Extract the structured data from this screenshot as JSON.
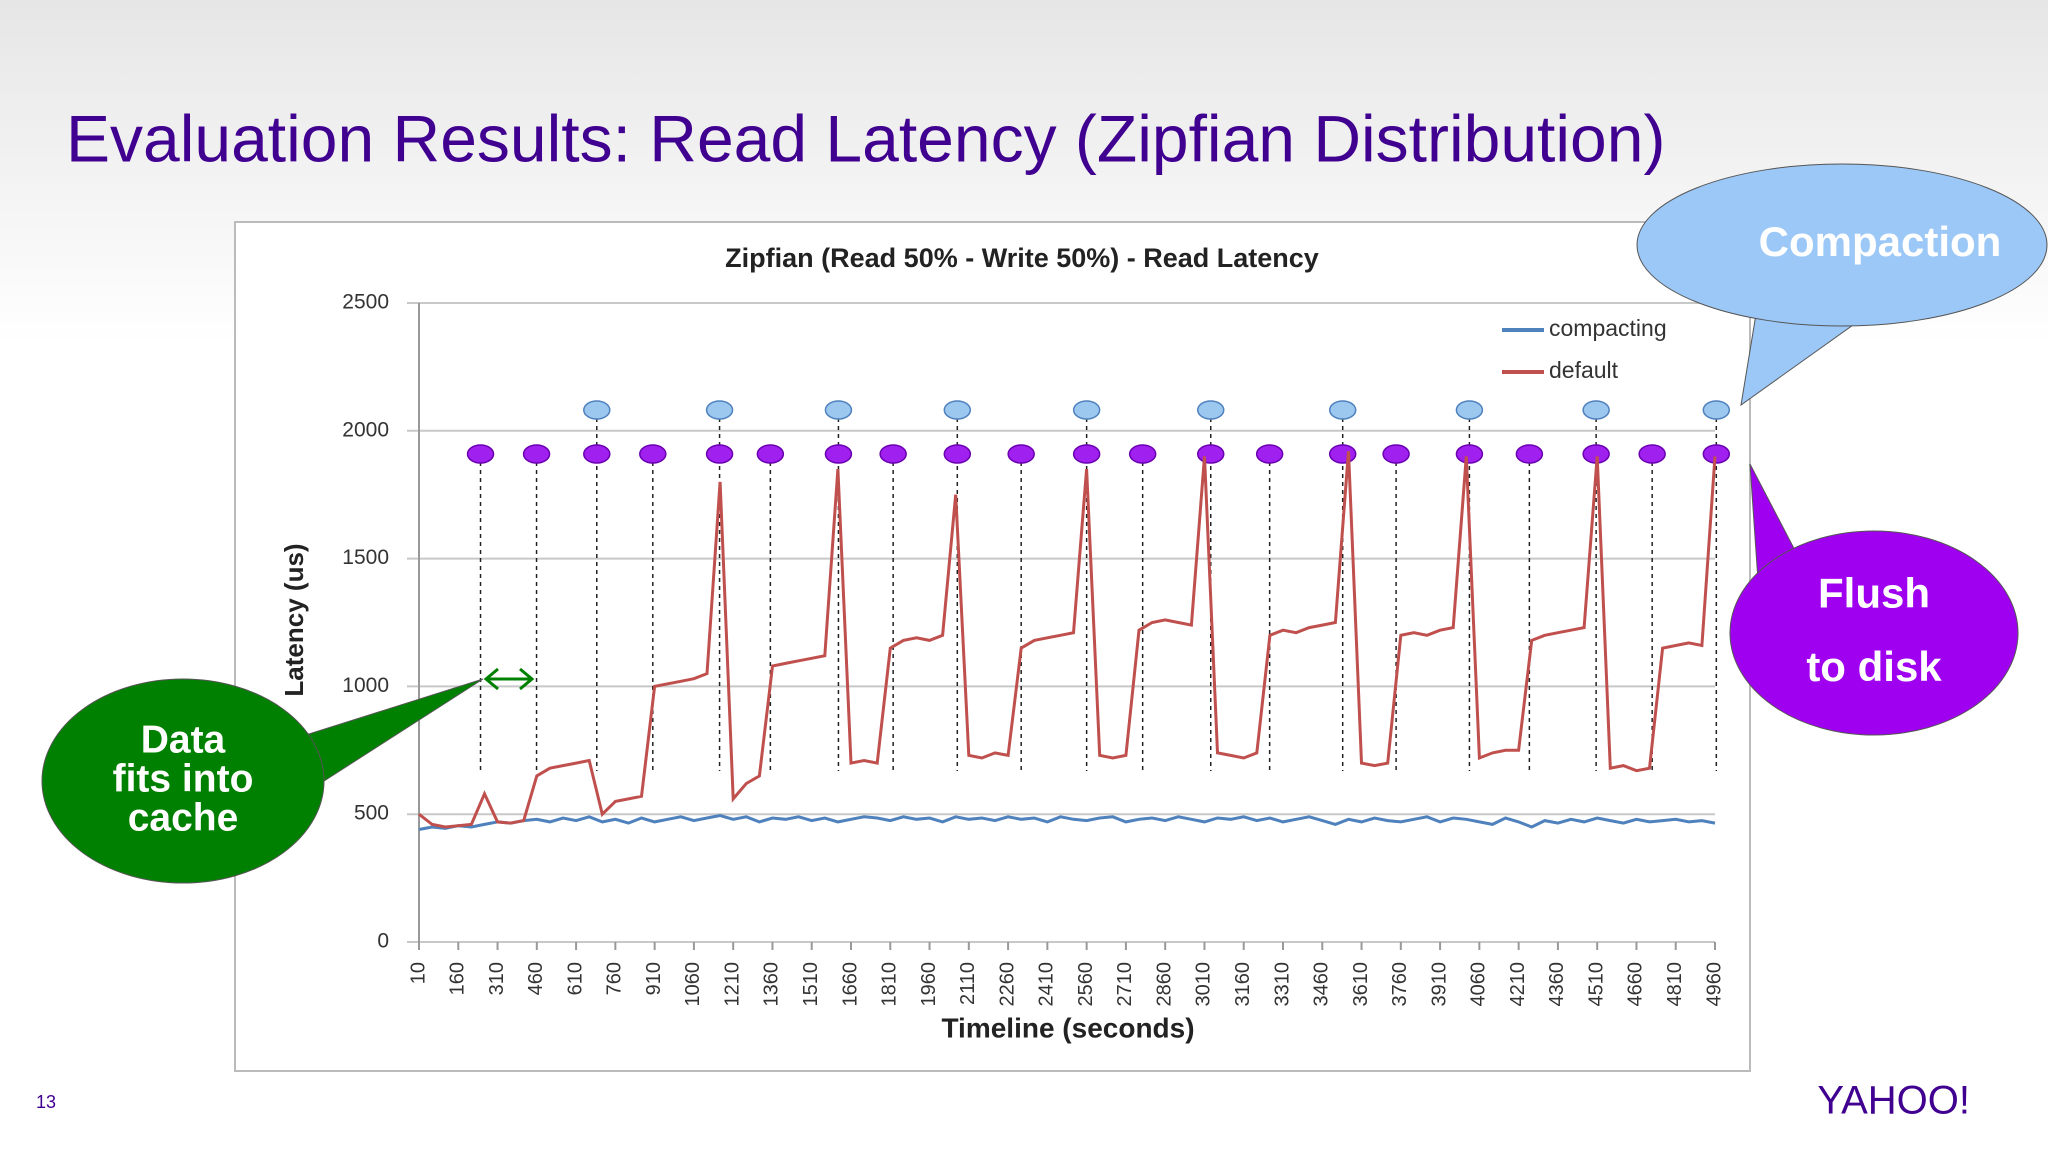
{
  "slide": {
    "title": "Evaluation Results: Read Latency (Zipfian Distribution)",
    "page": "13",
    "logo": "YAHOO!"
  },
  "chart_data": {
    "type": "line",
    "title": "Zipfian (Read 50% - Write 50%) - Read Latency",
    "x_label": "Timeline (seconds)",
    "y_label": "Latency (us)",
    "xlim": [
      10,
      4960
    ],
    "xticks": [
      10,
      160,
      310,
      460,
      610,
      760,
      910,
      1060,
      1210,
      1360,
      1510,
      1660,
      1810,
      1960,
      2110,
      2260,
      2410,
      2560,
      2710,
      2860,
      3010,
      3160,
      3310,
      3460,
      3610,
      3760,
      3910,
      4060,
      4210,
      4360,
      4510,
      4660,
      4810,
      4960
    ],
    "ylim": [
      0,
      2500
    ],
    "yticks": [
      0,
      500,
      1000,
      1500,
      2000,
      2500
    ],
    "grid": true,
    "legend": "upper right",
    "x": [
      10,
      60,
      110,
      160,
      210,
      260,
      310,
      360,
      410,
      460,
      510,
      560,
      610,
      660,
      710,
      760,
      810,
      860,
      910,
      960,
      1010,
      1060,
      1110,
      1160,
      1210,
      1260,
      1310,
      1360,
      1410,
      1460,
      1510,
      1560,
      1610,
      1660,
      1710,
      1760,
      1810,
      1860,
      1910,
      1960,
      2010,
      2060,
      2110,
      2160,
      2210,
      2260,
      2310,
      2360,
      2410,
      2460,
      2510,
      2560,
      2610,
      2660,
      2710,
      2760,
      2810,
      2860,
      2910,
      2960,
      3010,
      3060,
      3110,
      3160,
      3210,
      3260,
      3310,
      3360,
      3410,
      3460,
      3510,
      3560,
      3610,
      3660,
      3710,
      3760,
      3810,
      3860,
      3910,
      3960,
      4010,
      4060,
      4110,
      4160,
      4210,
      4260,
      4310,
      4360,
      4410,
      4460,
      4510,
      4560,
      4610,
      4660,
      4710,
      4760,
      4810,
      4860,
      4910,
      4960
    ],
    "series": [
      {
        "name": "compacting",
        "color": "#4f81bd",
        "values": [
          440,
          450,
          445,
          455,
          450,
          460,
          470,
          465,
          475,
          480,
          470,
          485,
          475,
          490,
          470,
          480,
          465,
          485,
          470,
          480,
          490,
          475,
          485,
          495,
          480,
          490,
          470,
          485,
          480,
          490,
          475,
          485,
          470,
          480,
          490,
          485,
          475,
          490,
          480,
          485,
          470,
          490,
          480,
          485,
          475,
          490,
          480,
          485,
          470,
          490,
          480,
          475,
          485,
          490,
          470,
          480,
          485,
          475,
          490,
          480,
          470,
          485,
          480,
          490,
          475,
          485,
          470,
          480,
          490,
          475,
          460,
          480,
          470,
          485,
          475,
          470,
          480,
          490,
          470,
          485,
          480,
          470,
          460,
          485,
          470,
          450,
          475,
          465,
          480,
          470,
          485,
          475,
          465,
          480,
          470,
          475,
          480,
          470,
          475,
          465
        ]
      },
      {
        "name": "default",
        "color": "#c0504d",
        "values": [
          500,
          460,
          450,
          455,
          460,
          580,
          470,
          465,
          475,
          650,
          680,
          690,
          700,
          710,
          500,
          550,
          560,
          570,
          1000,
          1010,
          1020,
          1030,
          1050,
          1800,
          560,
          620,
          650,
          1080,
          1090,
          1100,
          1110,
          1120,
          1850,
          700,
          710,
          700,
          1150,
          1180,
          1190,
          1180,
          1200,
          1750,
          730,
          720,
          740,
          730,
          1150,
          1180,
          1190,
          1200,
          1210,
          1850,
          730,
          720,
          730,
          1220,
          1250,
          1260,
          1250,
          1240,
          1900,
          740,
          730,
          720,
          740,
          1200,
          1220,
          1210,
          1230,
          1240,
          1250,
          1920,
          700,
          690,
          700,
          1200,
          1210,
          1200,
          1220,
          1230,
          1900,
          720,
          740,
          750,
          750,
          1180,
          1200,
          1210,
          1220,
          1230,
          1900,
          680,
          690,
          670,
          680,
          1150,
          1160,
          1170,
          1160,
          1900
        ]
      }
    ],
    "flush_markers": [
      245,
      459,
      689,
      903,
      1158,
      1352,
      1612,
      1821,
      2066,
      2310,
      2560,
      2774,
      3034,
      3259,
      3538,
      3742,
      4022,
      4251,
      4506,
      4720,
      4965
    ],
    "compaction_markers": [
      689,
      1158,
      1612,
      2066,
      2560,
      3034,
      3538,
      4022,
      4506,
      4965
    ],
    "annotations": [
      {
        "lines": [
          "Compaction"
        ]
      },
      {
        "lines": [
          "Flush",
          "to disk"
        ]
      },
      {
        "lines": [
          "Data",
          "fits into",
          "cache"
        ]
      }
    ]
  }
}
